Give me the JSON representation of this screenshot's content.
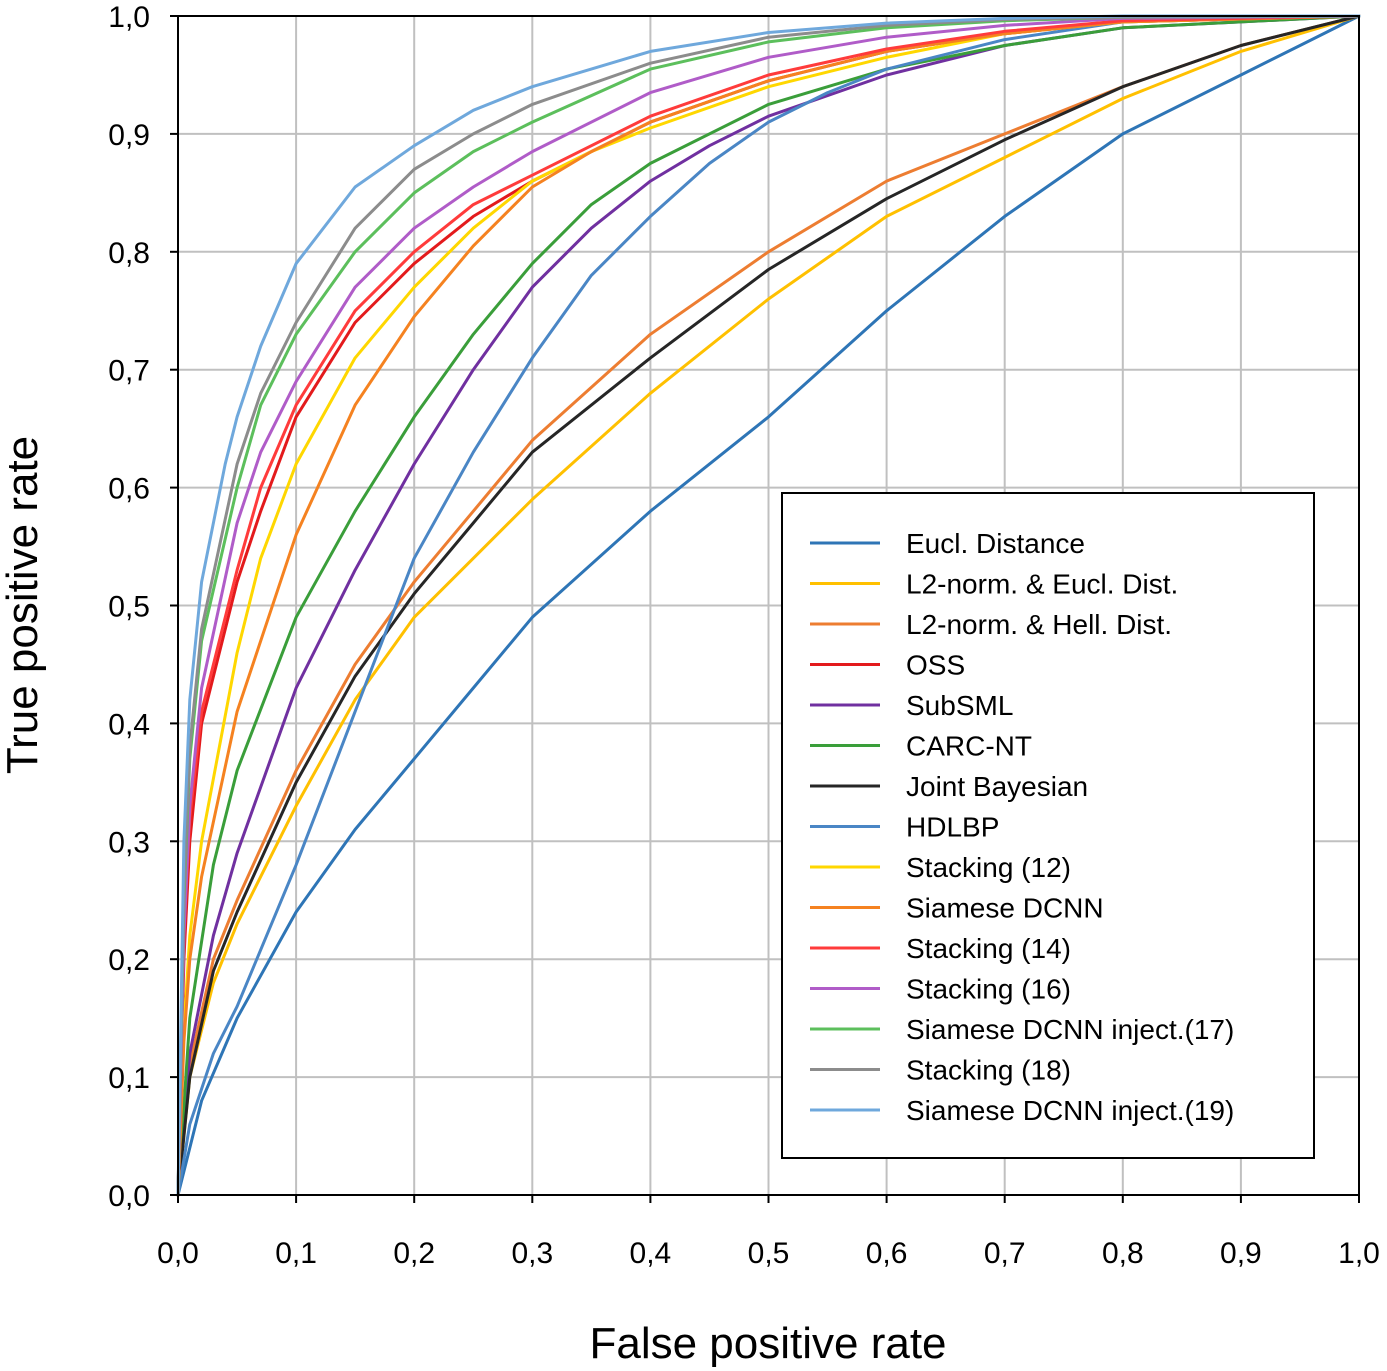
{
  "chart_data": {
    "type": "line",
    "title": "",
    "xlabel": "False positive rate",
    "ylabel": "True positive rate",
    "xlim": [
      0,
      1
    ],
    "ylim": [
      0,
      1
    ],
    "grid": true,
    "legend_position": "bottom-right",
    "x_ticks": [
      "0,0",
      "0,1",
      "0,2",
      "0,3",
      "0,4",
      "0,5",
      "0,6",
      "0,7",
      "0,8",
      "0,9",
      "1,0"
    ],
    "y_ticks": [
      "0,0",
      "0,1",
      "0,2",
      "0,3",
      "0,4",
      "0,5",
      "0,6",
      "0,7",
      "0,8",
      "0,9",
      "1,0"
    ],
    "series": [
      {
        "name": "Eucl. Distance",
        "color": "#2e75b6",
        "x": [
          0,
          0.02,
          0.05,
          0.1,
          0.15,
          0.2,
          0.25,
          0.3,
          0.4,
          0.5,
          0.6,
          0.7,
          0.8,
          0.9,
          0.95,
          1.0
        ],
        "y": [
          0,
          0.08,
          0.15,
          0.24,
          0.31,
          0.37,
          0.43,
          0.49,
          0.58,
          0.66,
          0.75,
          0.83,
          0.9,
          0.95,
          0.975,
          1.0
        ]
      },
      {
        "name": "L2-norm. & Eucl. Dist.",
        "color": "#ffc000",
        "x": [
          0,
          0.01,
          0.03,
          0.05,
          0.1,
          0.15,
          0.2,
          0.25,
          0.3,
          0.4,
          0.5,
          0.6,
          0.7,
          0.8,
          0.9,
          1.0
        ],
        "y": [
          0,
          0.1,
          0.18,
          0.23,
          0.33,
          0.42,
          0.49,
          0.54,
          0.59,
          0.68,
          0.76,
          0.83,
          0.88,
          0.93,
          0.97,
          1.0
        ]
      },
      {
        "name": "L2-norm. & Hell. Dist.",
        "color": "#ed7d31",
        "x": [
          0,
          0.01,
          0.03,
          0.05,
          0.1,
          0.15,
          0.2,
          0.25,
          0.3,
          0.4,
          0.5,
          0.6,
          0.7,
          0.8,
          0.9,
          1.0
        ],
        "y": [
          0,
          0.11,
          0.2,
          0.25,
          0.36,
          0.45,
          0.52,
          0.58,
          0.64,
          0.73,
          0.8,
          0.86,
          0.9,
          0.94,
          0.975,
          1.0
        ]
      },
      {
        "name": "OSS",
        "color": "#e31a1c",
        "x": [
          0,
          0.005,
          0.01,
          0.02,
          0.05,
          0.07,
          0.1,
          0.15,
          0.2,
          0.25,
          0.3,
          0.4,
          0.5,
          0.6,
          0.7,
          0.8,
          1.0
        ],
        "y": [
          0,
          0.2,
          0.3,
          0.4,
          0.52,
          0.58,
          0.66,
          0.74,
          0.79,
          0.83,
          0.86,
          0.91,
          0.945,
          0.97,
          0.985,
          0.995,
          1.0
        ]
      },
      {
        "name": "SubSML",
        "color": "#7030a0",
        "x": [
          0,
          0.01,
          0.03,
          0.05,
          0.1,
          0.15,
          0.2,
          0.25,
          0.3,
          0.35,
          0.4,
          0.45,
          0.5,
          0.6,
          0.7,
          0.8,
          1.0
        ],
        "y": [
          0,
          0.12,
          0.22,
          0.29,
          0.43,
          0.53,
          0.62,
          0.7,
          0.77,
          0.82,
          0.86,
          0.89,
          0.915,
          0.95,
          0.975,
          0.99,
          1.0
        ]
      },
      {
        "name": "CARC-NT",
        "color": "#3a9e3a",
        "x": [
          0,
          0.01,
          0.03,
          0.05,
          0.1,
          0.15,
          0.2,
          0.25,
          0.3,
          0.35,
          0.4,
          0.5,
          0.6,
          0.7,
          0.8,
          1.0
        ],
        "y": [
          0,
          0.15,
          0.28,
          0.36,
          0.49,
          0.58,
          0.66,
          0.73,
          0.79,
          0.84,
          0.875,
          0.925,
          0.955,
          0.975,
          0.99,
          1.0
        ]
      },
      {
        "name": "Joint Bayesian",
        "color": "#262626",
        "x": [
          0,
          0.01,
          0.03,
          0.05,
          0.1,
          0.15,
          0.2,
          0.25,
          0.3,
          0.4,
          0.5,
          0.6,
          0.7,
          0.8,
          0.9,
          1.0
        ],
        "y": [
          0,
          0.1,
          0.19,
          0.24,
          0.35,
          0.44,
          0.51,
          0.57,
          0.63,
          0.71,
          0.785,
          0.845,
          0.895,
          0.94,
          0.975,
          1.0
        ]
      },
      {
        "name": "HDLBP",
        "color": "#4a86c5",
        "x": [
          0,
          0.01,
          0.03,
          0.05,
          0.1,
          0.15,
          0.2,
          0.25,
          0.3,
          0.35,
          0.4,
          0.45,
          0.5,
          0.55,
          0.6,
          0.7,
          0.8,
          1.0
        ],
        "y": [
          0,
          0.06,
          0.12,
          0.16,
          0.28,
          0.41,
          0.54,
          0.63,
          0.71,
          0.78,
          0.83,
          0.875,
          0.91,
          0.935,
          0.955,
          0.98,
          0.995,
          1.0
        ]
      },
      {
        "name": "Stacking (12)",
        "color": "#ffd700",
        "x": [
          0,
          0.005,
          0.01,
          0.02,
          0.05,
          0.07,
          0.1,
          0.15,
          0.2,
          0.25,
          0.3,
          0.35,
          0.4,
          0.5,
          0.6,
          0.7,
          0.8,
          1.0
        ],
        "y": [
          0,
          0.14,
          0.22,
          0.3,
          0.46,
          0.54,
          0.62,
          0.71,
          0.77,
          0.82,
          0.86,
          0.885,
          0.905,
          0.94,
          0.965,
          0.985,
          0.995,
          1.0
        ]
      },
      {
        "name": "Siamese DCNN",
        "color": "#f58220",
        "x": [
          0,
          0.005,
          0.01,
          0.02,
          0.05,
          0.1,
          0.15,
          0.2,
          0.25,
          0.3,
          0.35,
          0.4,
          0.5,
          0.6,
          0.7,
          0.8,
          1.0
        ],
        "y": [
          0,
          0.13,
          0.2,
          0.27,
          0.41,
          0.56,
          0.67,
          0.745,
          0.805,
          0.855,
          0.885,
          0.91,
          0.945,
          0.97,
          0.985,
          0.995,
          1.0
        ]
      },
      {
        "name": "Stacking (14)",
        "color": "#ff3b3b",
        "x": [
          0,
          0.005,
          0.01,
          0.02,
          0.05,
          0.07,
          0.1,
          0.15,
          0.2,
          0.25,
          0.3,
          0.4,
          0.5,
          0.6,
          0.7,
          0.8,
          1.0
        ],
        "y": [
          0,
          0.22,
          0.32,
          0.41,
          0.53,
          0.6,
          0.67,
          0.75,
          0.8,
          0.84,
          0.865,
          0.915,
          0.95,
          0.972,
          0.987,
          0.996,
          1.0
        ]
      },
      {
        "name": "Stacking (16)",
        "color": "#b05cc8",
        "x": [
          0,
          0.005,
          0.01,
          0.02,
          0.05,
          0.07,
          0.1,
          0.15,
          0.2,
          0.25,
          0.3,
          0.4,
          0.5,
          0.6,
          0.7,
          0.8,
          1.0
        ],
        "y": [
          0,
          0.22,
          0.33,
          0.43,
          0.57,
          0.63,
          0.69,
          0.77,
          0.82,
          0.855,
          0.885,
          0.935,
          0.965,
          0.982,
          0.992,
          0.998,
          1.0
        ]
      },
      {
        "name": "Siamese DCNN inject.(17)",
        "color": "#5cbf5c",
        "x": [
          0,
          0.005,
          0.01,
          0.02,
          0.05,
          0.07,
          0.1,
          0.15,
          0.2,
          0.25,
          0.3,
          0.4,
          0.5,
          0.6,
          0.7,
          0.8,
          1.0
        ],
        "y": [
          0,
          0.25,
          0.37,
          0.47,
          0.6,
          0.67,
          0.73,
          0.8,
          0.85,
          0.885,
          0.91,
          0.955,
          0.978,
          0.99,
          0.996,
          0.999,
          1.0
        ]
      },
      {
        "name": "Stacking (18)",
        "color": "#8c8c8c",
        "x": [
          0,
          0.005,
          0.01,
          0.02,
          0.05,
          0.07,
          0.1,
          0.15,
          0.2,
          0.25,
          0.3,
          0.4,
          0.5,
          0.6,
          0.7,
          0.8,
          1.0
        ],
        "y": [
          0,
          0.26,
          0.38,
          0.48,
          0.62,
          0.68,
          0.74,
          0.82,
          0.87,
          0.9,
          0.925,
          0.96,
          0.982,
          0.992,
          0.997,
          0.999,
          1.0
        ]
      },
      {
        "name": "Siamese DCNN inject.(19)",
        "color": "#6fa8dc",
        "x": [
          0,
          0.005,
          0.01,
          0.02,
          0.04,
          0.05,
          0.07,
          0.1,
          0.15,
          0.2,
          0.25,
          0.3,
          0.4,
          0.5,
          0.6,
          0.7,
          0.8,
          1.0
        ],
        "y": [
          0,
          0.3,
          0.42,
          0.52,
          0.62,
          0.66,
          0.72,
          0.79,
          0.855,
          0.89,
          0.92,
          0.94,
          0.97,
          0.986,
          0.994,
          0.998,
          1.0,
          1.0
        ]
      }
    ]
  }
}
